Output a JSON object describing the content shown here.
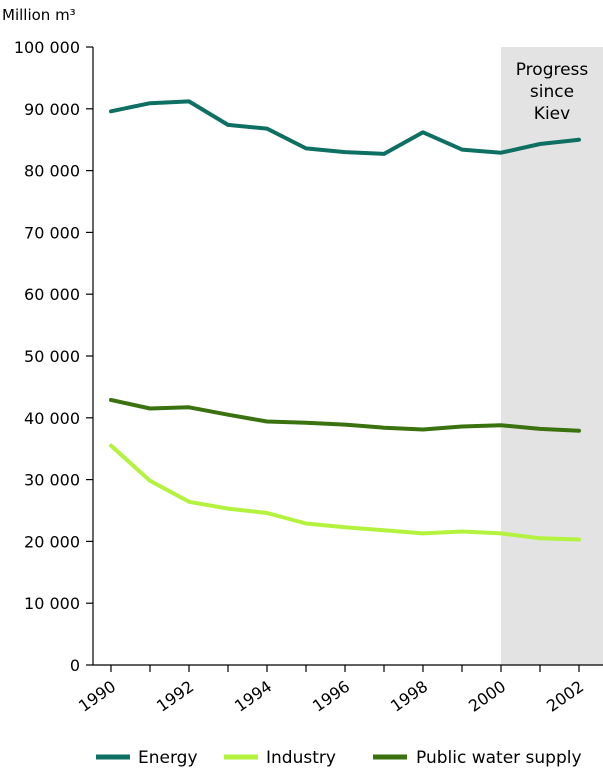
{
  "chart_data": {
    "type": "line",
    "unit_label": "Million m³",
    "x": [
      1990,
      1991,
      1992,
      1993,
      1994,
      1995,
      1996,
      1997,
      1998,
      1999,
      2000,
      2001,
      2002
    ],
    "x_tick_labels": [
      "1990",
      "1992",
      "1994",
      "1996",
      "1998",
      "2000",
      "2002"
    ],
    "y_tick_labels": [
      "0",
      "10 000",
      "20 000",
      "30 000",
      "40 000",
      "50 000",
      "60 000",
      "70 000",
      "80 000",
      "90 000",
      "100 000"
    ],
    "ylim": [
      0,
      100000
    ],
    "xlim": [
      1989.6,
      2002.6
    ],
    "grid": false,
    "legend_position": "bottom",
    "shaded_region": {
      "x_start": 2000,
      "x_end": 2002.6,
      "label_lines": [
        "Progress",
        "since",
        "Kiev"
      ],
      "color": "#e3e3e3"
    },
    "series": [
      {
        "name": "Energy",
        "color": "#0e6f63",
        "values": [
          89600,
          90900,
          91200,
          87400,
          86800,
          83600,
          83000,
          82700,
          86200,
          83400,
          82900,
          84300,
          85000
        ]
      },
      {
        "name": "Industry",
        "color": "#b3f23d",
        "values": [
          35500,
          29800,
          26400,
          25300,
          24600,
          22900,
          22300,
          21800,
          21300,
          21600,
          21300,
          20500,
          20300
        ]
      },
      {
        "name": "Public water supply",
        "color": "#3a7210",
        "values": [
          42900,
          41500,
          41700,
          40500,
          39400,
          39200,
          38900,
          38400,
          38100,
          38600,
          38800,
          38200,
          37900
        ]
      }
    ]
  }
}
